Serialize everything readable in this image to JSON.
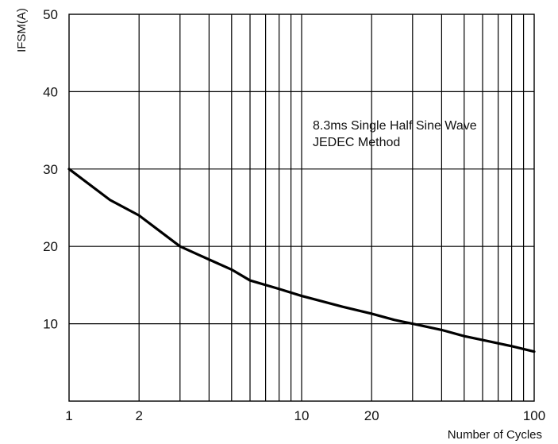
{
  "chart_data": {
    "type": "line",
    "title": "",
    "xlabel": "Number of Cycles",
    "ylabel": "IFSM(A)",
    "xscale": "log",
    "xlim": [
      1,
      100
    ],
    "ylim": [
      0,
      50
    ],
    "grid": true,
    "x_ticks": [
      1,
      2,
      10,
      20,
      100
    ],
    "x_tick_labels": [
      "1",
      "2",
      "10",
      "20",
      "100"
    ],
    "y_ticks": [
      10,
      20,
      30,
      40,
      50
    ],
    "y_tick_labels": [
      "10",
      "20",
      "30",
      "40",
      "50"
    ],
    "annotation_lines": [
      "8.3ms Single Half Sine Wave",
      "JEDEC Method"
    ],
    "series": [
      {
        "x": [
          1,
          1.5,
          2,
          2.5,
          3,
          4,
          5,
          6,
          8,
          10,
          15,
          20,
          25,
          30,
          40,
          50,
          60,
          80,
          100
        ],
        "values": [
          30.0,
          26.0,
          24.0,
          21.8,
          20.0,
          18.3,
          17.0,
          15.6,
          14.5,
          13.6,
          12.2,
          11.3,
          10.5,
          10.0,
          9.2,
          8.4,
          7.9,
          7.1,
          6.4
        ]
      }
    ],
    "colors": {
      "line": "#000000",
      "grid": "#000000",
      "background": "#ffffff"
    }
  }
}
